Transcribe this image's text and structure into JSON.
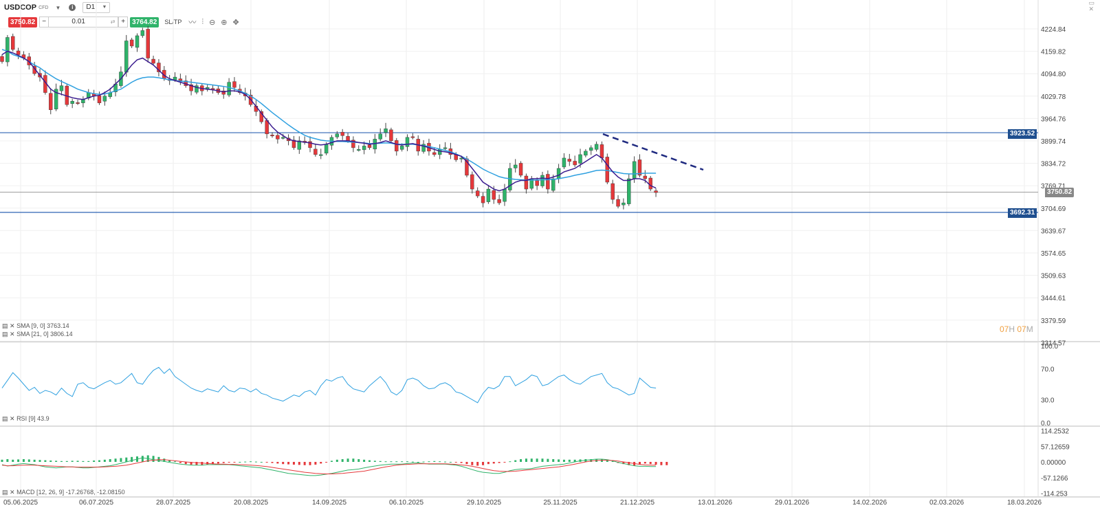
{
  "toolbar": {
    "symbol": "USDCOP",
    "symbol_sub": "CFD",
    "timeframe": "D1",
    "sell_price": "3750.82",
    "buy_price": "3764.82",
    "quantity": "0.01",
    "minus": "−",
    "plus": "+",
    "sltp_label": "SL/TP",
    "colors": {
      "sell": "#e5383b",
      "buy": "#2fb36a"
    }
  },
  "main_chart": {
    "y_ticks": [
      "4224.84",
      "4159.82",
      "4094.80",
      "4029.78",
      "3964.76",
      "3899.74",
      "3834.72",
      "3769.71",
      "3704.69",
      "3639.67",
      "3574.65",
      "3509.63",
      "3444.61",
      "3379.59",
      "3314.57"
    ],
    "hlines": [
      {
        "price": "3923.52",
        "color": "#2d63b4"
      },
      {
        "price": "3692.31",
        "color": "#2d63b4"
      }
    ],
    "current_price": "3750.82",
    "countdown": {
      "h": "07",
      "h_unit": "H",
      "m": "07",
      "m_unit": "M"
    },
    "legend": [
      "SMA [9, 0] 3763.14",
      "SMA [21, 0] 3806.14"
    ]
  },
  "chart_data": [
    {
      "type": "candlestick",
      "ylim": [
        3314.57,
        4250
      ],
      "x_ticks": [
        "05.06.2025",
        "06.07.2025",
        "28.07.2025",
        "20.08.2025",
        "14.09.2025",
        "06.10.2025",
        "29.10.2025",
        "25.11.2025",
        "21.12.2025",
        "13.01.2026",
        "29.01.2026",
        "14.02.2026",
        "02.03.2026",
        "18.03.2026"
      ],
      "close": [
        4130,
        4200,
        4165,
        4150,
        4140,
        4120,
        4095,
        4085,
        4040,
        3990,
        4050,
        4060,
        4005,
        4015,
        4010,
        4020,
        4040,
        4030,
        4010,
        4030,
        4040,
        4065,
        4100,
        4190,
        4175,
        4205,
        4220,
        4140,
        4125,
        4100,
        4080,
        4075,
        4085,
        4075,
        4060,
        4045,
        4060,
        4045,
        4055,
        4050,
        4040,
        4035,
        4070,
        4055,
        4040,
        4030,
        4005,
        3985,
        3955,
        3920,
        3915,
        3905,
        3910,
        3900,
        3880,
        3900,
        3895,
        3880,
        3860,
        3860,
        3890,
        3910,
        3920,
        3915,
        3900,
        3880,
        3875,
        3885,
        3880,
        3905,
        3920,
        3935,
        3900,
        3870,
        3885,
        3910,
        3910,
        3870,
        3890,
        3870,
        3860,
        3875,
        3880,
        3860,
        3845,
        3850,
        3800,
        3760,
        3740,
        3720,
        3760,
        3730,
        3720,
        3760,
        3820,
        3830,
        3800,
        3760,
        3790,
        3770,
        3800,
        3760,
        3790,
        3820,
        3850,
        3840,
        3830,
        3860,
        3870,
        3880,
        3890,
        3850,
        3780,
        3730,
        3710,
        3720,
        3790,
        3840,
        3800,
        3790,
        3760,
        3750
      ],
      "sma9": [
        4150,
        4160,
        4155,
        4148,
        4140,
        4130,
        4110,
        4090,
        4070,
        4050,
        4040,
        4035,
        4030,
        4025,
        4022,
        4020,
        4025,
        4030,
        4032,
        4040,
        4050,
        4065,
        4080,
        4100,
        4120,
        4135,
        4140,
        4130,
        4120,
        4105,
        4090,
        4080,
        4075,
        4070,
        4065,
        4060,
        4055,
        4052,
        4050,
        4048,
        4045,
        4042,
        4045,
        4045,
        4042,
        4035,
        4020,
        4000,
        3980,
        3960,
        3940,
        3925,
        3915,
        3905,
        3900,
        3898,
        3896,
        3894,
        3890,
        3888,
        3890,
        3895,
        3900,
        3900,
        3900,
        3898,
        3895,
        3893,
        3890,
        3892,
        3895,
        3900,
        3895,
        3890,
        3888,
        3890,
        3892,
        3888,
        3885,
        3880,
        3875,
        3870,
        3868,
        3865,
        3860,
        3855,
        3840,
        3820,
        3800,
        3780,
        3770,
        3760,
        3755,
        3760,
        3770,
        3780,
        3785,
        3785,
        3790,
        3790,
        3792,
        3790,
        3795,
        3800,
        3810,
        3815,
        3820,
        3830,
        3840,
        3850,
        3860,
        3850,
        3830,
        3810,
        3795,
        3785,
        3785,
        3790,
        3790,
        3785,
        3770,
        3763
      ],
      "sma21": [
        4165,
        4160,
        4150,
        4145,
        4140,
        4130,
        4120,
        4112,
        4100,
        4090,
        4080,
        4072,
        4065,
        4058,
        4050,
        4045,
        4040,
        4037,
        4035,
        4036,
        4040,
        4045,
        4050,
        4060,
        4070,
        4078,
        4083,
        4085,
        4085,
        4083,
        4080,
        4077,
        4075,
        4073,
        4072,
        4070,
        4068,
        4066,
        4064,
        4062,
        4060,
        4058,
        4055,
        4050,
        4045,
        4038,
        4030,
        4020,
        4008,
        3995,
        3982,
        3970,
        3958,
        3946,
        3935,
        3925,
        3916,
        3910,
        3906,
        3902,
        3900,
        3899,
        3898,
        3898,
        3897,
        3896,
        3895,
        3894,
        3892,
        3892,
        3893,
        3894,
        3893,
        3890,
        3890,
        3890,
        3890,
        3888,
        3886,
        3883,
        3880,
        3876,
        3872,
        3868,
        3862,
        3855,
        3847,
        3838,
        3828,
        3818,
        3810,
        3803,
        3796,
        3792,
        3790,
        3788,
        3787,
        3786,
        3786,
        3786,
        3787,
        3787,
        3788,
        3790,
        3793,
        3796,
        3800,
        3803,
        3806,
        3810,
        3814,
        3815,
        3814,
        3811,
        3808,
        3805,
        3804,
        3804,
        3805,
        3806,
        3806,
        3806
      ]
    },
    {
      "type": "line",
      "name": "RSI [9] 43.9",
      "y_ticks": [
        "100.0",
        "70.0",
        "30.0",
        "0.0"
      ],
      "ylim": [
        0,
        100
      ],
      "values": [
        45,
        55,
        65,
        58,
        50,
        42,
        46,
        38,
        42,
        40,
        36,
        45,
        38,
        34,
        50,
        52,
        46,
        44,
        48,
        52,
        55,
        50,
        52,
        58,
        64,
        52,
        50,
        60,
        68,
        72,
        64,
        70,
        60,
        55,
        50,
        45,
        42,
        40,
        44,
        42,
        40,
        48,
        42,
        40,
        45,
        44,
        40,
        44,
        38,
        36,
        32,
        30,
        28,
        32,
        36,
        34,
        40,
        42,
        36,
        48,
        56,
        54,
        58,
        60,
        50,
        44,
        42,
        40,
        48,
        54,
        60,
        52,
        40,
        36,
        42,
        56,
        58,
        55,
        48,
        44,
        45,
        50,
        52,
        48,
        40,
        38,
        34,
        30,
        26,
        38,
        46,
        44,
        48,
        60,
        60,
        48,
        52,
        56,
        62,
        60,
        48,
        50,
        55,
        60,
        62,
        56,
        52,
        50,
        55,
        60,
        62,
        64,
        52,
        46,
        44,
        40,
        36,
        38,
        58,
        52,
        46,
        45
      ],
      "color": "#2ea0e0"
    },
    {
      "type": "bar",
      "name": "MACD [12, 26, 9] -17.26768, -12.08150",
      "y_ticks": [
        "114.2532",
        "57.12659",
        "0.00000",
        "-57.1266",
        "-114.253"
      ],
      "ylim": [
        -114.253,
        114.2532
      ],
      "histogram": [
        8,
        10,
        8,
        9,
        10,
        9,
        8,
        7,
        6,
        5,
        4,
        3,
        3,
        4,
        4,
        3,
        3,
        5,
        6,
        8,
        10,
        12,
        14,
        16,
        18,
        20,
        22,
        24,
        22,
        18,
        12,
        6,
        2,
        -4,
        -8,
        -10,
        -12,
        -12,
        -10,
        -8,
        -6,
        -4,
        -2,
        -1,
        0,
        1,
        2,
        1,
        0,
        -2,
        -4,
        -6,
        -8,
        -9,
        -10,
        -11,
        -12,
        -12,
        -10,
        -6,
        -2,
        4,
        8,
        10,
        12,
        12,
        10,
        8,
        6,
        4,
        3,
        2,
        2,
        2,
        2,
        2,
        1,
        0,
        1,
        2,
        3,
        2,
        1,
        0,
        -2,
        -4,
        -8,
        -12,
        -14,
        -12,
        -8,
        -6,
        -4,
        -2,
        2,
        6,
        10,
        12,
        12,
        12,
        12,
        11,
        10,
        9,
        8,
        8,
        8,
        9,
        10,
        10,
        10,
        9,
        8,
        4,
        -4,
        -8,
        -12,
        -14,
        -10,
        -6,
        -8,
        -10,
        -12,
        -12
      ],
      "macd": [
        -10,
        -15,
        -12,
        -8,
        -6,
        -8,
        -10,
        -14,
        -18,
        -20,
        -22,
        -20,
        -18,
        -18,
        -20,
        -22,
        -22,
        -20,
        -18,
        -16,
        -14,
        -10,
        -5,
        0,
        5,
        10,
        15,
        12,
        8,
        5,
        2,
        -2,
        -5,
        -8,
        -10,
        -12,
        -12,
        -12,
        -10,
        -10,
        -10,
        -10,
        -10,
        -12,
        -14,
        -16,
        -18,
        -20,
        -22,
        -26,
        -30,
        -34,
        -38,
        -42,
        -44,
        -46,
        -48,
        -50,
        -50,
        -48,
        -45,
        -42,
        -38,
        -34,
        -30,
        -28,
        -26,
        -22,
        -18,
        -15,
        -12,
        -10,
        -8,
        -8,
        -8,
        -6,
        -4,
        -4,
        -6,
        -8,
        -8,
        -8,
        -8,
        -10,
        -12,
        -16,
        -22,
        -28,
        -34,
        -38,
        -40,
        -42,
        -42,
        -38,
        -32,
        -28,
        -26,
        -26,
        -24,
        -20,
        -16,
        -14,
        -12,
        -10,
        -8,
        -4,
        0,
        4,
        6,
        8,
        10,
        10,
        8,
        4,
        -2,
        -6,
        -10,
        -14,
        -16,
        -16,
        -17,
        -17
      ],
      "signal": [
        -12,
        -14,
        -14,
        -13,
        -12,
        -12,
        -12,
        -13,
        -14,
        -15,
        -16,
        -17,
        -18,
        -18,
        -19,
        -19,
        -19,
        -19,
        -19,
        -18,
        -17,
        -16,
        -14,
        -12,
        -8,
        -4,
        0,
        4,
        6,
        8,
        8,
        6,
        4,
        2,
        0,
        -2,
        -3,
        -4,
        -6,
        -7,
        -8,
        -8,
        -9,
        -9,
        -10,
        -11,
        -12,
        -13,
        -15,
        -17,
        -20,
        -23,
        -26,
        -29,
        -32,
        -35,
        -38,
        -40,
        -42,
        -43,
        -44,
        -44,
        -43,
        -42,
        -40,
        -38,
        -36,
        -34,
        -30,
        -26,
        -22,
        -18,
        -15,
        -12,
        -10,
        -9,
        -8,
        -7,
        -7,
        -7,
        -7,
        -7,
        -7,
        -8,
        -9,
        -11,
        -13,
        -16,
        -20,
        -24,
        -28,
        -32,
        -34,
        -35,
        -35,
        -34,
        -32,
        -30,
        -28,
        -26,
        -24,
        -22,
        -20,
        -18,
        -15,
        -12,
        -8,
        -4,
        0,
        3,
        5,
        6,
        6,
        5,
        3,
        0,
        -3,
        -6,
        -9,
        -11,
        -12,
        -12
      ],
      "colors": {
        "pos": "#2fb36a",
        "neg": "#e5383b",
        "macd": "#2fb36a",
        "signal": "#e5383b"
      }
    }
  ]
}
